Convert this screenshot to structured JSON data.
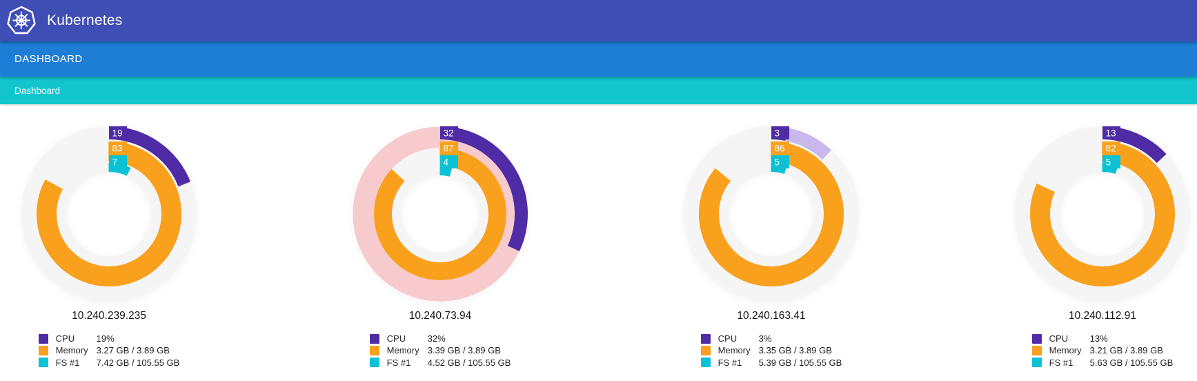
{
  "header": {
    "app_title": "Kubernetes",
    "logo_icon": "kubernetes-helm-wheel"
  },
  "nav": {
    "primary_label": "DASHBOARD",
    "breadcrumb_label": "Dashboard"
  },
  "colors": {
    "header_bg": "#3f4eb5",
    "nav_bg": "#1e7ed6",
    "breadcrumb_bg": "#12c4cc",
    "cpu": "#4f2ba5",
    "cpu_secondary": "#c9b8ec",
    "memory": "#f9a01d",
    "fs": "#0ac2d4",
    "ring_bg": "#f5f5f5",
    "ring_bg_alert": "#f7cace",
    "label_text": "#ffffff"
  },
  "nodes": [
    {
      "ip": "10.240.239.235",
      "rings": {
        "cpu_pct": 19,
        "cpu_label": "19",
        "mem_pct": 83,
        "mem_label": "83",
        "fs_pct": 7,
        "fs_label": "7"
      },
      "alert": false,
      "cpu_secondary_pct": 0,
      "legend": [
        {
          "name": "CPU",
          "value": "19%"
        },
        {
          "name": "Memory",
          "value": "3.27 GB / 3.89 GB"
        },
        {
          "name": "FS #1",
          "value": "7.42 GB / 105.55 GB"
        }
      ]
    },
    {
      "ip": "10.240.73.94",
      "rings": {
        "cpu_pct": 32,
        "cpu_label": "32",
        "mem_pct": 87,
        "mem_label": "87",
        "fs_pct": 4,
        "fs_label": "4"
      },
      "alert": true,
      "cpu_secondary_pct": 0,
      "legend": [
        {
          "name": "CPU",
          "value": "32%"
        },
        {
          "name": "Memory",
          "value": "3.39 GB / 3.89 GB"
        },
        {
          "name": "FS #1",
          "value": "4.52 GB / 105.55 GB"
        }
      ]
    },
    {
      "ip": "10.240.163.41",
      "rings": {
        "cpu_pct": 3,
        "cpu_label": "3",
        "mem_pct": 86,
        "mem_label": "86",
        "fs_pct": 5,
        "fs_label": "5"
      },
      "alert": false,
      "cpu_secondary_pct": 12,
      "legend": [
        {
          "name": "CPU",
          "value": "3%"
        },
        {
          "name": "Memory",
          "value": "3.35 GB / 3.89 GB"
        },
        {
          "name": "FS #1",
          "value": "5.39 GB / 105.55 GB"
        }
      ]
    },
    {
      "ip": "10.240.112.91",
      "rings": {
        "cpu_pct": 13,
        "cpu_label": "13",
        "mem_pct": 82,
        "mem_label": "82",
        "fs_pct": 5,
        "fs_label": "5"
      },
      "alert": false,
      "cpu_secondary_pct": 0,
      "legend": [
        {
          "name": "CPU",
          "value": "13%"
        },
        {
          "name": "Memory",
          "value": "3.21 GB / 3.89 GB"
        },
        {
          "name": "FS #1",
          "value": "5.63 GB / 105.55 GB"
        }
      ]
    }
  ],
  "chart_data": [
    {
      "type": "donut",
      "title": "10.240.239.235",
      "legend_position": "bottom",
      "series": [
        {
          "name": "CPU",
          "pct": 19,
          "text": "19%"
        },
        {
          "name": "Memory",
          "pct": 83,
          "text": "3.27 GB / 3.89 GB"
        },
        {
          "name": "FS #1",
          "pct": 7,
          "text": "7.42 GB / 105.55 GB"
        }
      ]
    },
    {
      "type": "donut",
      "title": "10.240.73.94",
      "legend_position": "bottom",
      "alert_ring": "CPU",
      "series": [
        {
          "name": "CPU",
          "pct": 32,
          "text": "32%"
        },
        {
          "name": "Memory",
          "pct": 87,
          "text": "3.39 GB / 3.89 GB"
        },
        {
          "name": "FS #1",
          "pct": 4,
          "text": "4.52 GB / 105.55 GB"
        }
      ]
    },
    {
      "type": "donut",
      "title": "10.240.163.41",
      "legend_position": "bottom",
      "cpu_secondary_pct": 12,
      "series": [
        {
          "name": "CPU",
          "pct": 3,
          "text": "3%"
        },
        {
          "name": "Memory",
          "pct": 86,
          "text": "3.35 GB / 3.89 GB"
        },
        {
          "name": "FS #1",
          "pct": 5,
          "text": "5.39 GB / 105.55 GB"
        }
      ]
    },
    {
      "type": "donut",
      "title": "10.240.112.91",
      "legend_position": "bottom",
      "series": [
        {
          "name": "CPU",
          "pct": 13,
          "text": "13%"
        },
        {
          "name": "Memory",
          "pct": 82,
          "text": "3.21 GB / 3.89 GB"
        },
        {
          "name": "FS #1",
          "pct": 5,
          "text": "5.63 GB / 105.55 GB"
        }
      ]
    }
  ]
}
